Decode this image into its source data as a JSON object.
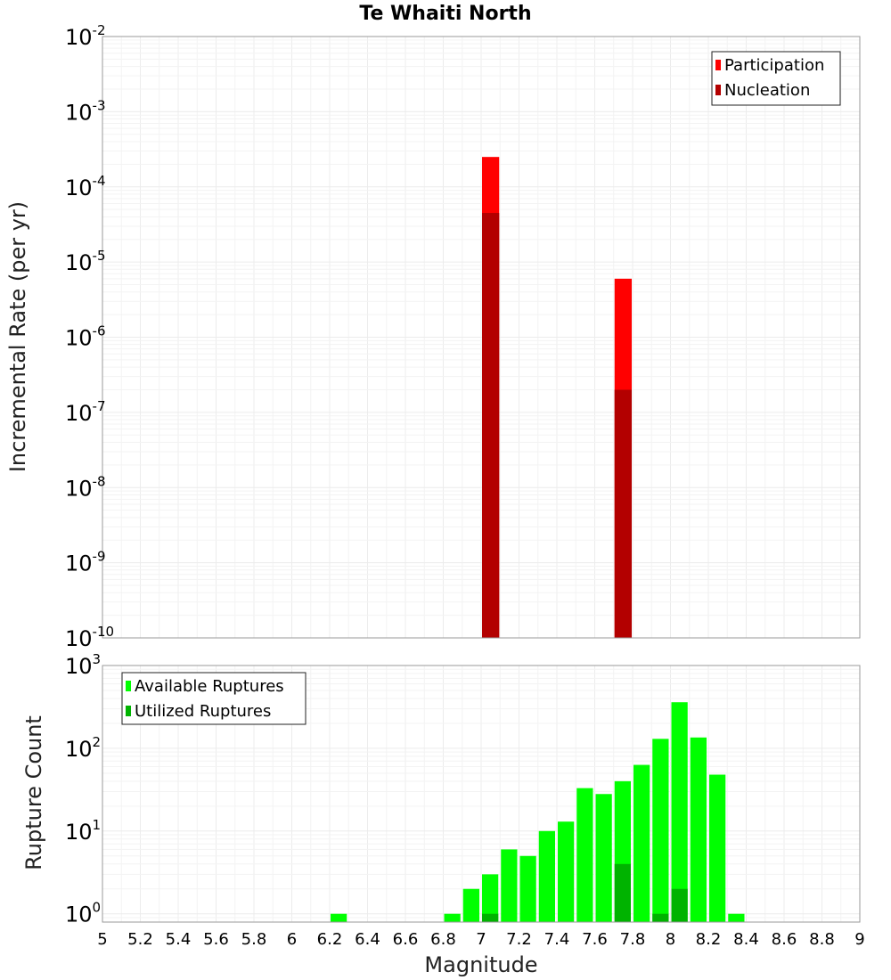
{
  "chart_data": {
    "title": "Te Whaiti North",
    "xlabel": "Magnitude",
    "xlim": [
      5,
      9
    ],
    "xticks": [
      "5",
      "5.2",
      "5.4",
      "5.6",
      "5.8",
      "6",
      "6.2",
      "6.4",
      "6.6",
      "6.8",
      "7",
      "7.2",
      "7.4",
      "7.6",
      "7.8",
      "8",
      "8.2",
      "8.4",
      "8.6",
      "8.8",
      "9"
    ],
    "bin_width": 0.1,
    "panels": [
      {
        "type": "bar",
        "ylabel": "Incremental Rate (per yr)",
        "yscale": "log",
        "ylim_exp": [
          -10,
          -2
        ],
        "ytick_exponents": [
          "-2",
          "-3",
          "-4",
          "-5",
          "-6",
          "-7",
          "-8",
          "-9",
          "-10"
        ],
        "legend_position": "top-right",
        "series": [
          {
            "name": "Participation",
            "color": "#ff0000",
            "points": [
              {
                "x": 7.05,
                "y": 0.00025
              },
              {
                "x": 7.75,
                "y": 6e-06
              }
            ]
          },
          {
            "name": "Nucleation",
            "color": "#b30000",
            "points": [
              {
                "x": 7.05,
                "y": 4.5e-05
              },
              {
                "x": 7.75,
                "y": 2e-07
              }
            ]
          }
        ]
      },
      {
        "type": "bar",
        "ylabel": "Rupture Count",
        "yscale": "log",
        "ylim_exp": [
          -0.1,
          3
        ],
        "ytick_exponents": [
          "3",
          "2",
          "1",
          "0"
        ],
        "legend_position": "top-left",
        "series": [
          {
            "name": "Available Ruptures",
            "color": "#00ff00",
            "points": [
              {
                "x": 6.25,
                "y": 1
              },
              {
                "x": 6.85,
                "y": 1
              },
              {
                "x": 6.95,
                "y": 2
              },
              {
                "x": 7.05,
                "y": 3
              },
              {
                "x": 7.15,
                "y": 6
              },
              {
                "x": 7.25,
                "y": 5
              },
              {
                "x": 7.35,
                "y": 10
              },
              {
                "x": 7.45,
                "y": 13
              },
              {
                "x": 7.55,
                "y": 33
              },
              {
                "x": 7.65,
                "y": 28
              },
              {
                "x": 7.75,
                "y": 40
              },
              {
                "x": 7.85,
                "y": 63
              },
              {
                "x": 7.95,
                "y": 130
              },
              {
                "x": 8.05,
                "y": 360
              },
              {
                "x": 8.15,
                "y": 135
              },
              {
                "x": 8.25,
                "y": 48
              },
              {
                "x": 8.35,
                "y": 1
              }
            ]
          },
          {
            "name": "Utilized Ruptures",
            "color": "#00b300",
            "points": [
              {
                "x": 7.05,
                "y": 1
              },
              {
                "x": 7.75,
                "y": 4
              },
              {
                "x": 7.95,
                "y": 1
              },
              {
                "x": 8.05,
                "y": 2
              }
            ]
          }
        ]
      }
    ]
  }
}
